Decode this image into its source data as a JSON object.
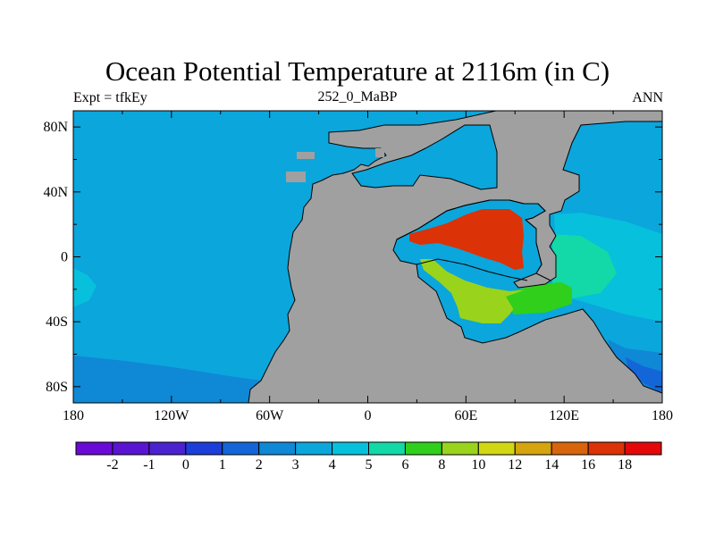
{
  "title": "Ocean Potential Temperature at 2116m (in C)",
  "subtitle_left": "Expt = tfkEy",
  "subtitle_center": "252_0_MaBP",
  "subtitle_right": "ANN",
  "map": {
    "projection": "cylindrical-equidistant",
    "lon_range": [
      -180,
      180
    ],
    "lat_range": [
      -90,
      90
    ],
    "lon_ticks": [
      "180",
      "120W",
      "60W",
      "0",
      "60E",
      "120E",
      "180"
    ],
    "lat_ticks": [
      "80N",
      "40N",
      "0",
      "40S",
      "80S"
    ],
    "land_color": "#a0a0a0"
  },
  "legend": {
    "levels": [
      "-2",
      "-1",
      "0",
      "1",
      "2",
      "3",
      "4",
      "5",
      "6",
      "8",
      "10",
      "12",
      "14",
      "16",
      "18"
    ],
    "colors": [
      "#6a0ad6",
      "#5a14d2",
      "#4a22cf",
      "#1c3ed9",
      "#1366d8",
      "#0f88d6",
      "#0ba6dc",
      "#07c0dc",
      "#13d8a8",
      "#2fcf1c",
      "#9ad31c",
      "#d2d714",
      "#d5a40e",
      "#d8640b",
      "#dc3207",
      "#e4080a"
    ]
  }
}
